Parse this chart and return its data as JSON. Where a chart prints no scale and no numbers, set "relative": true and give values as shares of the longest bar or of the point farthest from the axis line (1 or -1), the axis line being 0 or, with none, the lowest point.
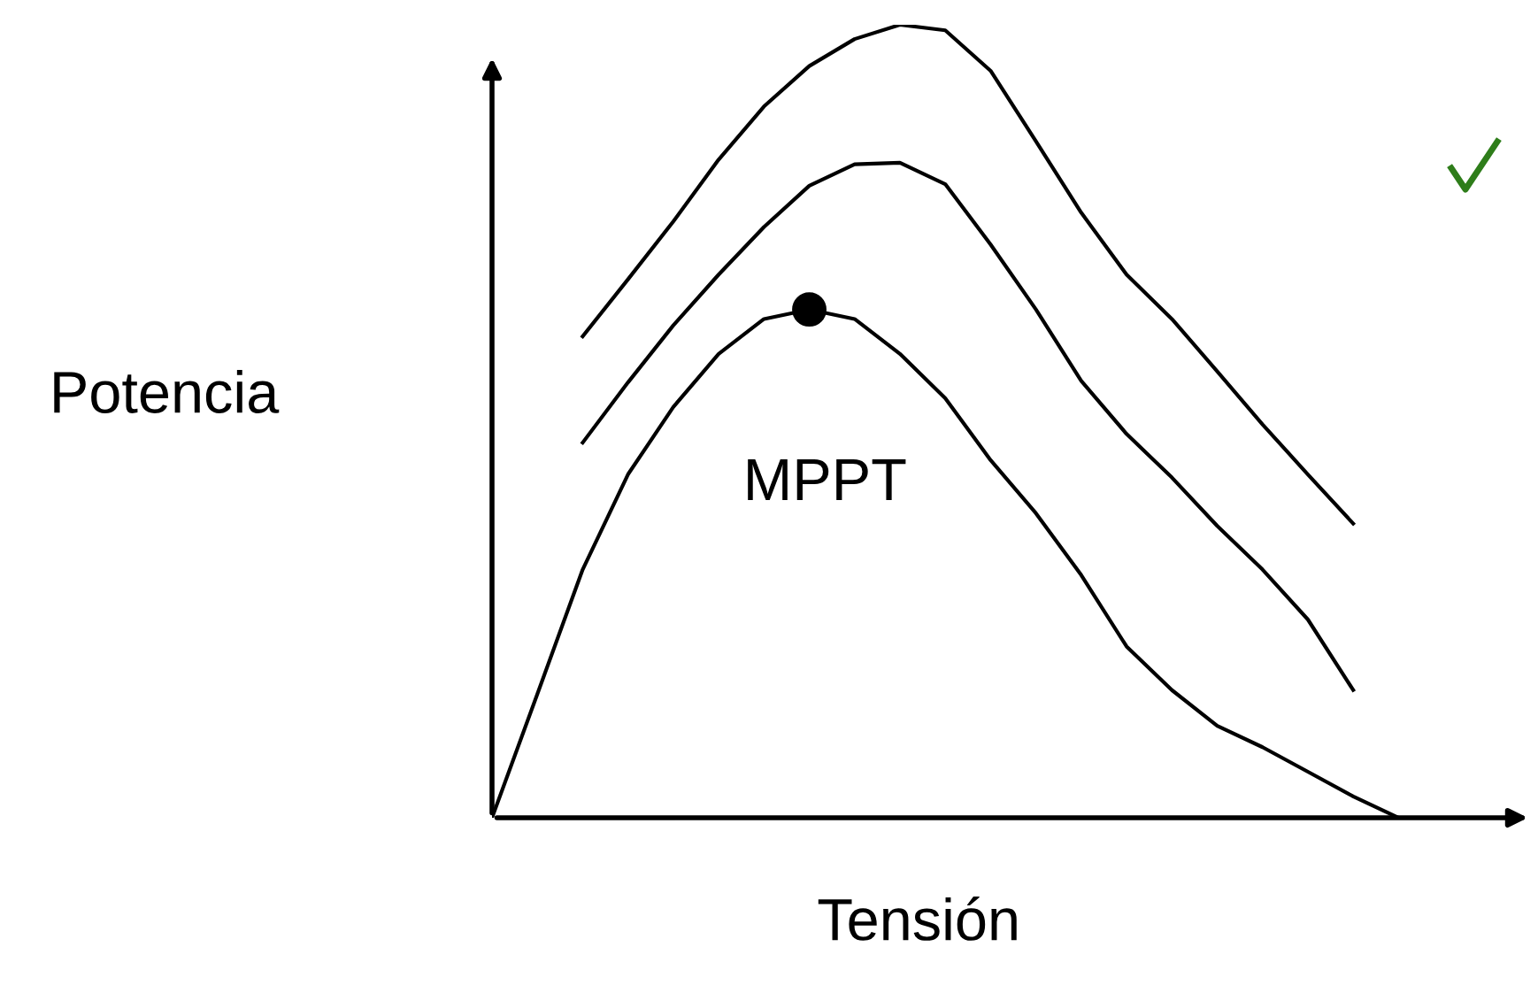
{
  "chart_data": {
    "type": "line",
    "relative": true,
    "xlabel": "Tensión",
    "ylabel": "Potencia",
    "line_style": "solid",
    "marker": "none",
    "categories": [
      null,
      null,
      null,
      null,
      null,
      null,
      null,
      null,
      null,
      null,
      null,
      null,
      null,
      null,
      null,
      null,
      null,
      null,
      null,
      null,
      null
    ],
    "series": [
      {
        "color": "#000000",
        "values": [
          null,
          null,
          0.607,
          0.679,
          0.752,
          0.83,
          0.897,
          0.948,
          0.982,
          1.0,
          0.993,
          0.942,
          0.853,
          0.763,
          0.685,
          0.629,
          0.563,
          0.496,
          0.433,
          0.371,
          null
        ]
      },
      {
        "color": "#000000",
        "values": [
          null,
          null,
          0.473,
          0.549,
          0.621,
          0.685,
          0.745,
          0.797,
          0.824,
          0.826,
          0.799,
          0.723,
          0.641,
          0.551,
          0.484,
          0.429,
          0.368,
          0.313,
          0.25,
          0.161,
          null
        ]
      },
      {
        "color": "#000000",
        "values": [
          0.0,
          0.156,
          0.313,
          0.433,
          0.518,
          0.585,
          0.629,
          0.641,
          0.629,
          0.585,
          0.529,
          0.451,
          0.384,
          0.306,
          0.216,
          0.161,
          0.116,
          0.089,
          0.058,
          0.027,
          0.0
        ]
      },
      {
        "color": "#000000",
        "marker": "circle",
        "values": [
          null,
          null,
          null,
          null,
          null,
          null,
          null,
          0.641,
          null,
          null,
          null,
          null,
          null,
          null,
          null,
          null,
          null,
          null,
          null,
          null,
          null
        ]
      }
    ],
    "annotations": [
      "MPPT"
    ]
  }
}
